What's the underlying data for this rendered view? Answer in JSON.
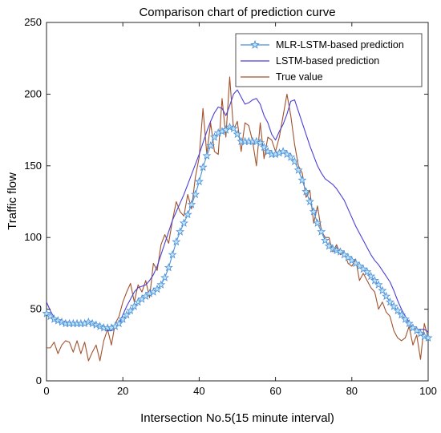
{
  "chart_data": {
    "type": "line",
    "title": "Comparison chart of prediction curve",
    "xlabel": "Intersection No.5(15 minute interval)",
    "ylabel": "Traffic flow",
    "xlim": [
      0,
      100
    ],
    "ylim": [
      0,
      250
    ],
    "xticks": [
      0,
      20,
      40,
      60,
      80,
      100
    ],
    "yticks": [
      0,
      50,
      100,
      150,
      200,
      250
    ],
    "grid": false,
    "legend_position": "top-right",
    "series": [
      {
        "name": "MLR-LSTM-based prediction",
        "color": "#4A8FD8",
        "marker": "pentagram",
        "x": [
          0,
          1,
          2,
          3,
          4,
          5,
          6,
          7,
          8,
          9,
          10,
          11,
          12,
          13,
          14,
          15,
          16,
          17,
          18,
          19,
          20,
          21,
          22,
          23,
          24,
          25,
          26,
          27,
          28,
          29,
          30,
          31,
          32,
          33,
          34,
          35,
          36,
          37,
          38,
          39,
          40,
          41,
          42,
          43,
          44,
          45,
          46,
          47,
          48,
          49,
          50,
          51,
          52,
          53,
          54,
          55,
          56,
          57,
          58,
          59,
          60,
          61,
          62,
          63,
          64,
          65,
          66,
          67,
          68,
          69,
          70,
          71,
          72,
          73,
          74,
          75,
          76,
          77,
          78,
          79,
          80,
          81,
          82,
          83,
          84,
          85,
          86,
          87,
          88,
          89,
          90,
          91,
          92,
          93,
          94,
          95,
          96,
          97,
          98,
          99,
          100
        ],
        "values": [
          47,
          45,
          43,
          42,
          41,
          40,
          40,
          40,
          40,
          40,
          40,
          41,
          40,
          39,
          38,
          37,
          37,
          37,
          38,
          40,
          43,
          46,
          49,
          52,
          55,
          57,
          59,
          61,
          62,
          64,
          67,
          72,
          79,
          88,
          97,
          104,
          110,
          116,
          123,
          130,
          139,
          149,
          157,
          164,
          170,
          173,
          174,
          175,
          177,
          176,
          172,
          167,
          167,
          167,
          167,
          167,
          166,
          163,
          160,
          158,
          158,
          159,
          160,
          158,
          156,
          153,
          147,
          140,
          132,
          125,
          118,
          110,
          104,
          98,
          94,
          92,
          91,
          90,
          88,
          86,
          84,
          82,
          80,
          78,
          76,
          73,
          70,
          67,
          63,
          59,
          55,
          52,
          49,
          46,
          43,
          40,
          37,
          35,
          33,
          31,
          30
        ]
      },
      {
        "name": "LSTM-based prediction",
        "color": "#4B3FD6",
        "marker": "none",
        "x": [
          0,
          1,
          2,
          3,
          4,
          5,
          6,
          7,
          8,
          9,
          10,
          11,
          12,
          13,
          14,
          15,
          16,
          17,
          18,
          19,
          20,
          21,
          22,
          23,
          24,
          25,
          26,
          27,
          28,
          29,
          30,
          31,
          32,
          33,
          34,
          35,
          36,
          37,
          38,
          39,
          40,
          41,
          42,
          43,
          44,
          45,
          46,
          47,
          48,
          49,
          50,
          51,
          52,
          53,
          54,
          55,
          56,
          57,
          58,
          59,
          60,
          61,
          62,
          63,
          64,
          65,
          66,
          67,
          68,
          69,
          70,
          71,
          72,
          73,
          74,
          75,
          76,
          77,
          78,
          79,
          80,
          81,
          82,
          83,
          84,
          85,
          86,
          87,
          88,
          89,
          90,
          91,
          92,
          93,
          94,
          95,
          96,
          97,
          98,
          99,
          100
        ],
        "values": [
          55,
          49,
          44,
          42,
          41,
          41,
          41,
          40,
          40,
          40,
          41,
          42,
          41,
          40,
          38,
          36,
          35,
          35,
          37,
          40,
          46,
          52,
          57,
          62,
          65,
          66,
          67,
          70,
          74,
          80,
          88,
          96,
          104,
          112,
          118,
          124,
          130,
          137,
          144,
          151,
          158,
          166,
          174,
          181,
          187,
          191,
          190,
          185,
          192,
          200,
          203,
          198,
          193,
          194,
          196,
          197,
          193,
          185,
          180,
          172,
          168,
          174,
          179,
          186,
          195,
          196,
          188,
          180,
          172,
          164,
          157,
          150,
          145,
          141,
          139,
          137,
          134,
          130,
          126,
          120,
          114,
          108,
          103,
          98,
          93,
          88,
          84,
          81,
          77,
          73,
          69,
          63,
          56,
          50,
          45,
          41,
          37,
          36,
          36,
          36,
          34
        ]
      },
      {
        "name": "True value",
        "color": "#A0522D",
        "marker": "none",
        "x": [
          0,
          1,
          2,
          3,
          4,
          5,
          6,
          7,
          8,
          9,
          10,
          11,
          12,
          13,
          14,
          15,
          16,
          17,
          18,
          19,
          20,
          21,
          22,
          23,
          24,
          25,
          26,
          27,
          28,
          29,
          30,
          31,
          32,
          33,
          34,
          35,
          36,
          37,
          38,
          39,
          40,
          41,
          42,
          43,
          44,
          45,
          46,
          47,
          48,
          49,
          50,
          51,
          52,
          53,
          54,
          55,
          56,
          57,
          58,
          59,
          60,
          61,
          62,
          63,
          64,
          65,
          66,
          67,
          68,
          69,
          70,
          71,
          72,
          73,
          74,
          75,
          76,
          77,
          78,
          79,
          80,
          81,
          82,
          83,
          84,
          85,
          86,
          87,
          88,
          89,
          90,
          91,
          92,
          93,
          94,
          95,
          96,
          97,
          98,
          99,
          100
        ],
        "values": [
          23,
          23,
          27,
          19,
          25,
          28,
          27,
          20,
          28,
          19,
          27,
          14,
          20,
          25,
          14,
          28,
          36,
          25,
          40,
          45,
          55,
          62,
          68,
          55,
          67,
          62,
          70,
          58,
          82,
          77,
          95,
          102,
          96,
          112,
          125,
          118,
          115,
          130,
          120,
          142,
          156,
          190,
          158,
          180,
          160,
          158,
          197,
          170,
          212,
          175,
          181,
          160,
          180,
          178,
          167,
          150,
          180,
          155,
          170,
          168,
          160,
          170,
          185,
          200,
          185,
          165,
          150,
          145,
          128,
          133,
          110,
          122,
          105,
          100,
          100,
          90,
          95,
          88,
          90,
          82,
          80,
          85,
          70,
          75,
          70,
          65,
          62,
          50,
          55,
          48,
          45,
          35,
          30,
          28,
          30,
          38,
          25,
          32,
          15,
          40,
          30
        ]
      }
    ]
  }
}
